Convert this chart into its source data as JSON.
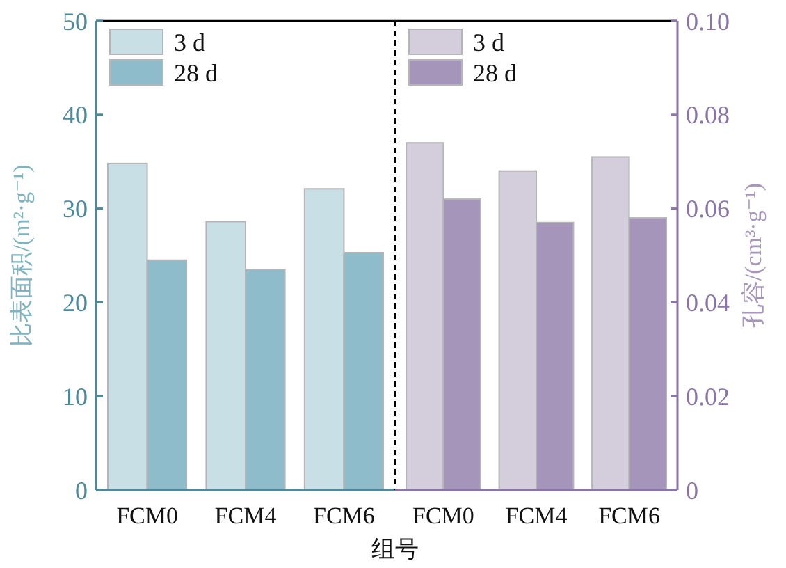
{
  "chart_data": [
    {
      "type": "bar",
      "xlabel": "组号",
      "ylabel": "比表面积/(m²·g⁻¹)",
      "categories": [
        "FCM0",
        "FCM4",
        "FCM6"
      ],
      "ylim": [
        0,
        50
      ],
      "yticks": [
        0,
        10,
        20,
        30,
        40,
        50
      ],
      "legend": "top left",
      "grid": false,
      "series": [
        {
          "name": "3 d",
          "color": "#c8dfe5",
          "values": [
            34.8,
            28.6,
            32.1
          ]
        },
        {
          "name": "28 d",
          "color": "#8fbccb",
          "values": [
            24.5,
            23.5,
            25.3
          ]
        }
      ]
    },
    {
      "type": "bar",
      "y2label": "孔容/(cm³·g⁻¹)",
      "categories": [
        "FCM0",
        "FCM4",
        "FCM6"
      ],
      "y2lim": [
        0,
        0.1
      ],
      "y2ticks": [
        {
          "value": 0,
          "label": "0"
        },
        {
          "value": 0.02,
          "label": "0.02"
        },
        {
          "value": 0.04,
          "label": "0.04"
        },
        {
          "value": 0.06,
          "label": "0.06"
        },
        {
          "value": 0.08,
          "label": "0.08"
        },
        {
          "value": 0.1,
          "label": "0.10"
        }
      ],
      "legend": "top left",
      "grid": false,
      "series": [
        {
          "name": "3 d",
          "color": "#d3cddc",
          "values": [
            0.074,
            0.068,
            0.071
          ],
          "axis": "y2"
        },
        {
          "name": "28 d",
          "color": "#a595ba",
          "values": [
            0.062,
            0.057,
            0.058
          ],
          "axis": "y2"
        }
      ]
    }
  ]
}
